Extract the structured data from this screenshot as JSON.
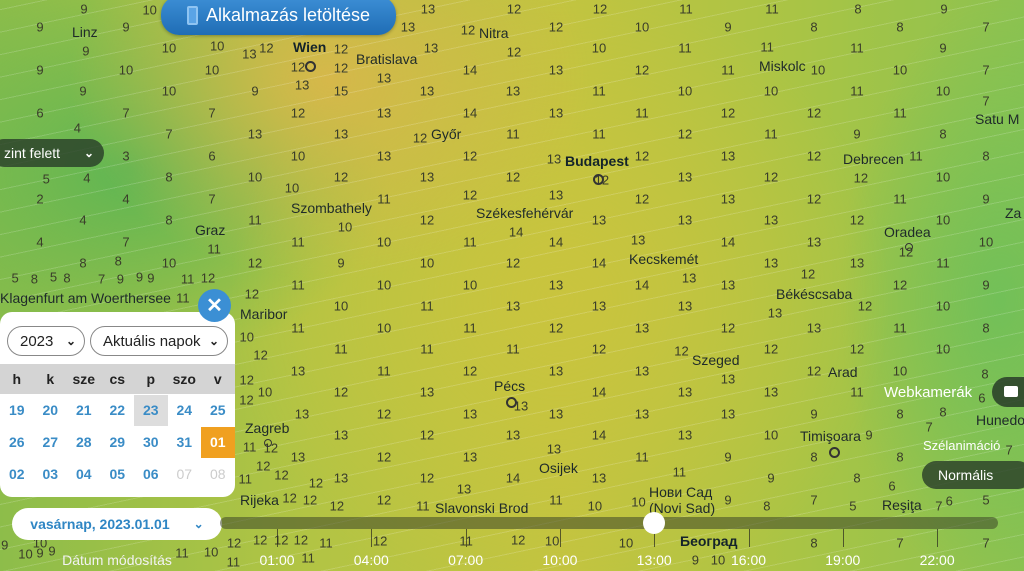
{
  "header": {
    "app_download_label": "Alkalmazás letöltése"
  },
  "level_selector": {
    "label": "zint felett"
  },
  "cities": [
    "Linz",
    "Wien",
    "Bratislava",
    "Nitra",
    "Miskolc",
    "Győr",
    "Budapest",
    "Debrecen",
    "Szombathely",
    "Székesfehérvár",
    "Graz",
    "Oradea",
    "Kecskemét",
    "Békéscsaba",
    "Klagenfurt am Woerthersee",
    "Maribor",
    "Szeged",
    "Pécs",
    "Arad",
    "Zagreb",
    "Timişoara",
    "Osijek",
    "Нови Сад",
    "(Novi Sad)",
    "Slavonski Brod",
    "Reşiţa",
    "Rijeka",
    "Satu M",
    "Hunedo",
    "Za",
    "Београд"
  ],
  "wind_values": [
    [
      9,
      10,
      12,
      12,
      13,
      12,
      12,
      11,
      11,
      8,
      9
    ],
    [
      9,
      9,
      10,
      12,
      13,
      12,
      12,
      10,
      9,
      8,
      8,
      7
    ],
    [
      9,
      10,
      13,
      12,
      13,
      12,
      10,
      11,
      11,
      11,
      9
    ],
    [
      9,
      10,
      10,
      13,
      13,
      14,
      13,
      12,
      11,
      10,
      10,
      7
    ],
    [
      9,
      10,
      9,
      15,
      13,
      13,
      11,
      10,
      10,
      11,
      10
    ],
    [
      6,
      7,
      7,
      12,
      13,
      14,
      13,
      11,
      12,
      12,
      11,
      7
    ],
    [
      4,
      7,
      13,
      13,
      12,
      11,
      11,
      12,
      11,
      9,
      8
    ],
    [
      5,
      3,
      6,
      10,
      13,
      12,
      13,
      12,
      13,
      12,
      11,
      8
    ],
    [
      4,
      8,
      10,
      12,
      13,
      12,
      12,
      13,
      12,
      12,
      10
    ],
    [
      2,
      4,
      7,
      10,
      11,
      12,
      13,
      12,
      13,
      12,
      11,
      9
    ],
    [
      4,
      8,
      11,
      10,
      12,
      14,
      13,
      13,
      13,
      12,
      10
    ],
    [
      4,
      7,
      11,
      11,
      10,
      11,
      14,
      13,
      14,
      13,
      12,
      10
    ],
    [
      8,
      10,
      12,
      9,
      10,
      12,
      14,
      13,
      13,
      13,
      11
    ],
    [
      8,
      9,
      12,
      11,
      10,
      10,
      13,
      14,
      13,
      12,
      12,
      9
    ],
    [
      8,
      11,
      12,
      10,
      11,
      13,
      13,
      13,
      13,
      12,
      10
    ],
    [
      5,
      9,
      10,
      11,
      10,
      11,
      12,
      13,
      12,
      13,
      11,
      8
    ],
    [
      7,
      11,
      12,
      11,
      11,
      11,
      12,
      12,
      12,
      12,
      10
    ],
    [
      5,
      9,
      12,
      13,
      11,
      12,
      13,
      13,
      13,
      12,
      10,
      8
    ],
    [
      8,
      10,
      12,
      12,
      13,
      13,
      14,
      13,
      13,
      11,
      8
    ],
    [
      9,
      11,
      12,
      13,
      12,
      13,
      13,
      13,
      13,
      9,
      8,
      6
    ],
    [
      9,
      11,
      12,
      13,
      12,
      13,
      14,
      13,
      10,
      9,
      7
    ],
    [
      9,
      11,
      12,
      13,
      12,
      13,
      13,
      11,
      9,
      8,
      8,
      7
    ],
    [
      10,
      12,
      12,
      13,
      12,
      14,
      13,
      11,
      9,
      8,
      6
    ],
    [
      10,
      11,
      12,
      12,
      12,
      13,
      11,
      10,
      9,
      7,
      6,
      5
    ],
    [
      11,
      11,
      12,
      12,
      11,
      12,
      10,
      9,
      8,
      5,
      7
    ],
    [
      10,
      11,
      12,
      12,
      12,
      11,
      10,
      10,
      10,
      8,
      7,
      7
    ]
  ],
  "calendar": {
    "year": "2023",
    "range": "Aktuális napok",
    "weekdays": [
      "h",
      "k",
      "sze",
      "cs",
      "p",
      "szo",
      "v"
    ],
    "weeks": [
      [
        "19",
        "20",
        "21",
        "22",
        "23",
        "24",
        "25"
      ],
      [
        "26",
        "27",
        "28",
        "29",
        "30",
        "31",
        "01"
      ],
      [
        "02",
        "03",
        "04",
        "05",
        "06",
        "07",
        "08"
      ]
    ],
    "today": "23",
    "selected": "01",
    "disabled": [
      "07",
      "08"
    ],
    "selected_color": "#f0a020"
  },
  "date_selector": {
    "value": "vasárnap, 2023.01.01",
    "caption": "Dátum módosítás"
  },
  "timeline": {
    "ticks": [
      "01:00",
      "04:00",
      "07:00",
      "10:00",
      "13:00",
      "16:00",
      "19:00",
      "22:00"
    ],
    "current": "13:00"
  },
  "webcams": {
    "label": "Webkamerák"
  },
  "wind_animation": {
    "label": "Szélanimáció",
    "value": "Normális"
  }
}
